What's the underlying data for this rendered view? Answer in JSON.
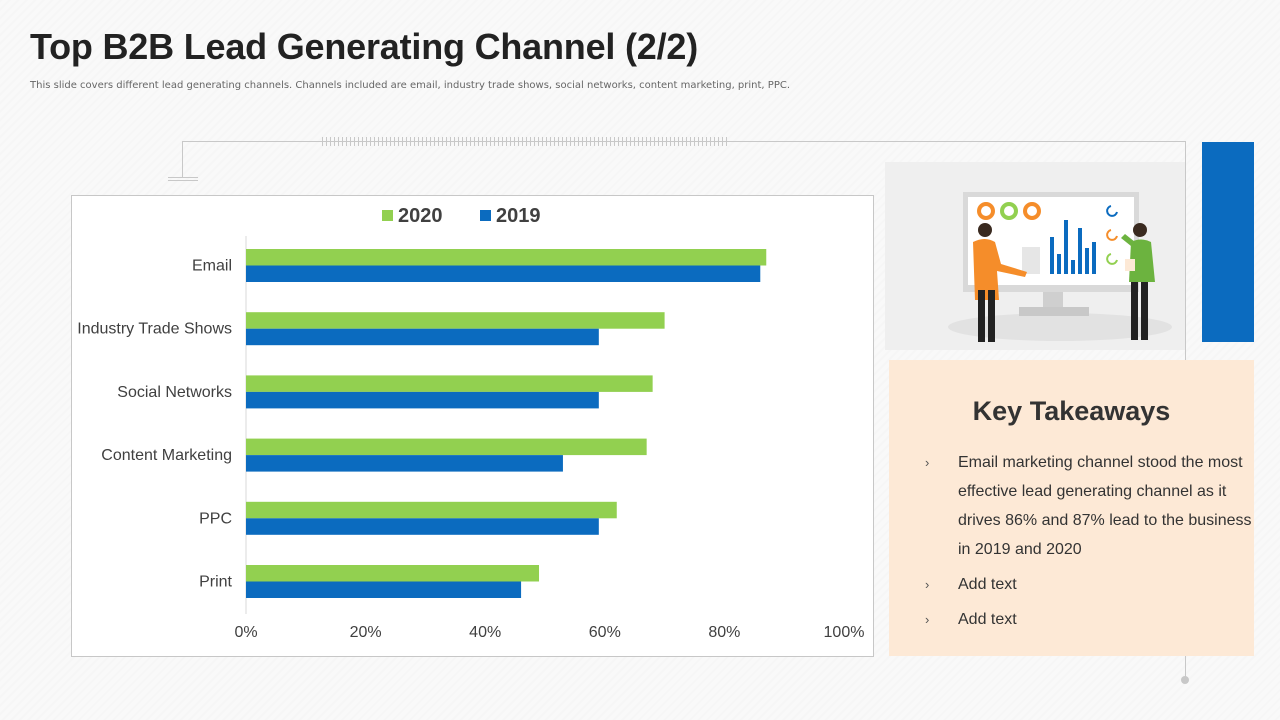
{
  "slide": {
    "title": "Top B2B Lead Generating Channel (2/2)",
    "subtitle": "This slide covers different lead generating channels. Channels included are email, industry trade shows, social networks, content marketing, print, PPC."
  },
  "colors": {
    "series_2020": "#92d050",
    "series_2019": "#0b6bbf",
    "accent_blue": "#0b6bbf",
    "takeaways_bg": "#fde9d6",
    "illustration_bg": "#efefef"
  },
  "chart_data": {
    "type": "bar",
    "orientation": "horizontal",
    "categories": [
      "Email",
      "Industry Trade Shows",
      "Social Networks",
      "Content Marketing",
      "PPC",
      "Print"
    ],
    "series": [
      {
        "name": "2020",
        "values": [
          87,
          70,
          68,
          67,
          62,
          49
        ]
      },
      {
        "name": "2019",
        "values": [
          86,
          59,
          59,
          53,
          59,
          46
        ]
      }
    ],
    "xlim": [
      0,
      100
    ],
    "x_ticks": [
      "0%",
      "20%",
      "40%",
      "60%",
      "80%",
      "100%"
    ],
    "value_unit": "%",
    "legend_position": "top",
    "grid": false
  },
  "takeaways": {
    "title": "Key Takeaways",
    "bullet": "›",
    "items": [
      "Email marketing channel stood the most effective lead generating channel as it drives 86% and 87% lead to the business in 2019 and 2020",
      "Add text",
      "Add text"
    ]
  },
  "illustration": {
    "icons": [
      "presentation-monitor-icon",
      "person-presenting-icon",
      "person-thinking-icon",
      "donut-chart-icon",
      "bar-chart-icon"
    ]
  }
}
